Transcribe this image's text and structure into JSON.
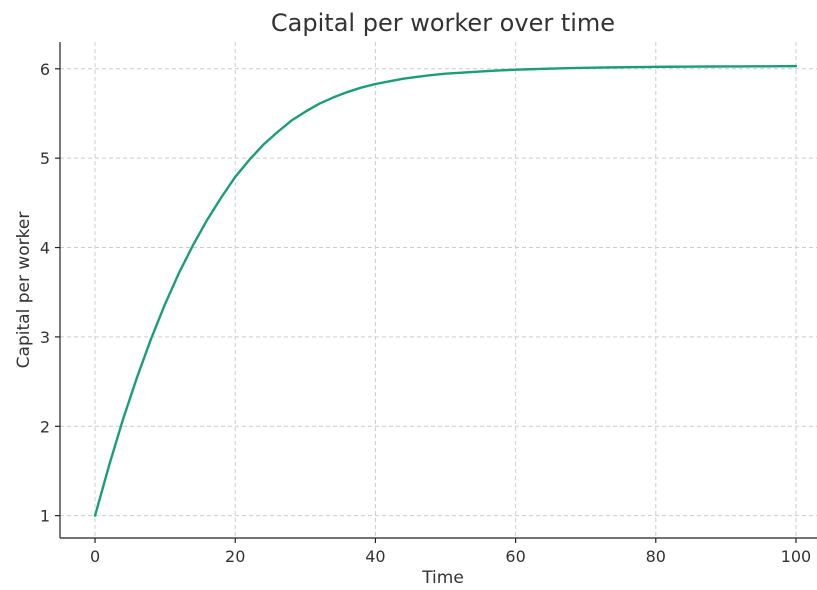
{
  "chart_data": {
    "type": "line",
    "title": "Capital per worker over time",
    "xlabel": "Time",
    "ylabel": "Capital per worker",
    "xlim": [
      -5,
      103
    ],
    "ylim": [
      0.75,
      6.3
    ],
    "x_ticks": [
      0,
      20,
      40,
      60,
      80,
      100
    ],
    "y_ticks": [
      1,
      2,
      3,
      4,
      5,
      6
    ],
    "grid": true,
    "line_color": "#1a9e7a",
    "series": [
      {
        "x": [
          0,
          2,
          4,
          6,
          8,
          10,
          12,
          14,
          16,
          18,
          20,
          22,
          24,
          26,
          28,
          30,
          32,
          34,
          36,
          38,
          40,
          42,
          44,
          46,
          48,
          50,
          52,
          54,
          56,
          58,
          60,
          62,
          64,
          66,
          68,
          70,
          72,
          74,
          76,
          78,
          80,
          82,
          84,
          86,
          88,
          90,
          92,
          94,
          96,
          98,
          100
        ],
        "values": [
          1.0,
          1.56,
          2.08,
          2.55,
          2.98,
          3.37,
          3.72,
          4.03,
          4.31,
          4.56,
          4.79,
          4.98,
          5.15,
          5.29,
          5.42,
          5.52,
          5.61,
          5.68,
          5.74,
          5.79,
          5.83,
          5.86,
          5.89,
          5.91,
          5.93,
          5.945,
          5.955,
          5.965,
          5.975,
          5.983,
          5.99,
          5.995,
          6.0,
          6.004,
          6.008,
          6.011,
          6.014,
          6.016,
          6.018,
          6.02,
          6.022,
          6.023,
          6.024,
          6.025,
          6.026,
          6.027,
          6.027,
          6.028,
          6.028,
          6.029,
          6.03
        ]
      }
    ]
  }
}
